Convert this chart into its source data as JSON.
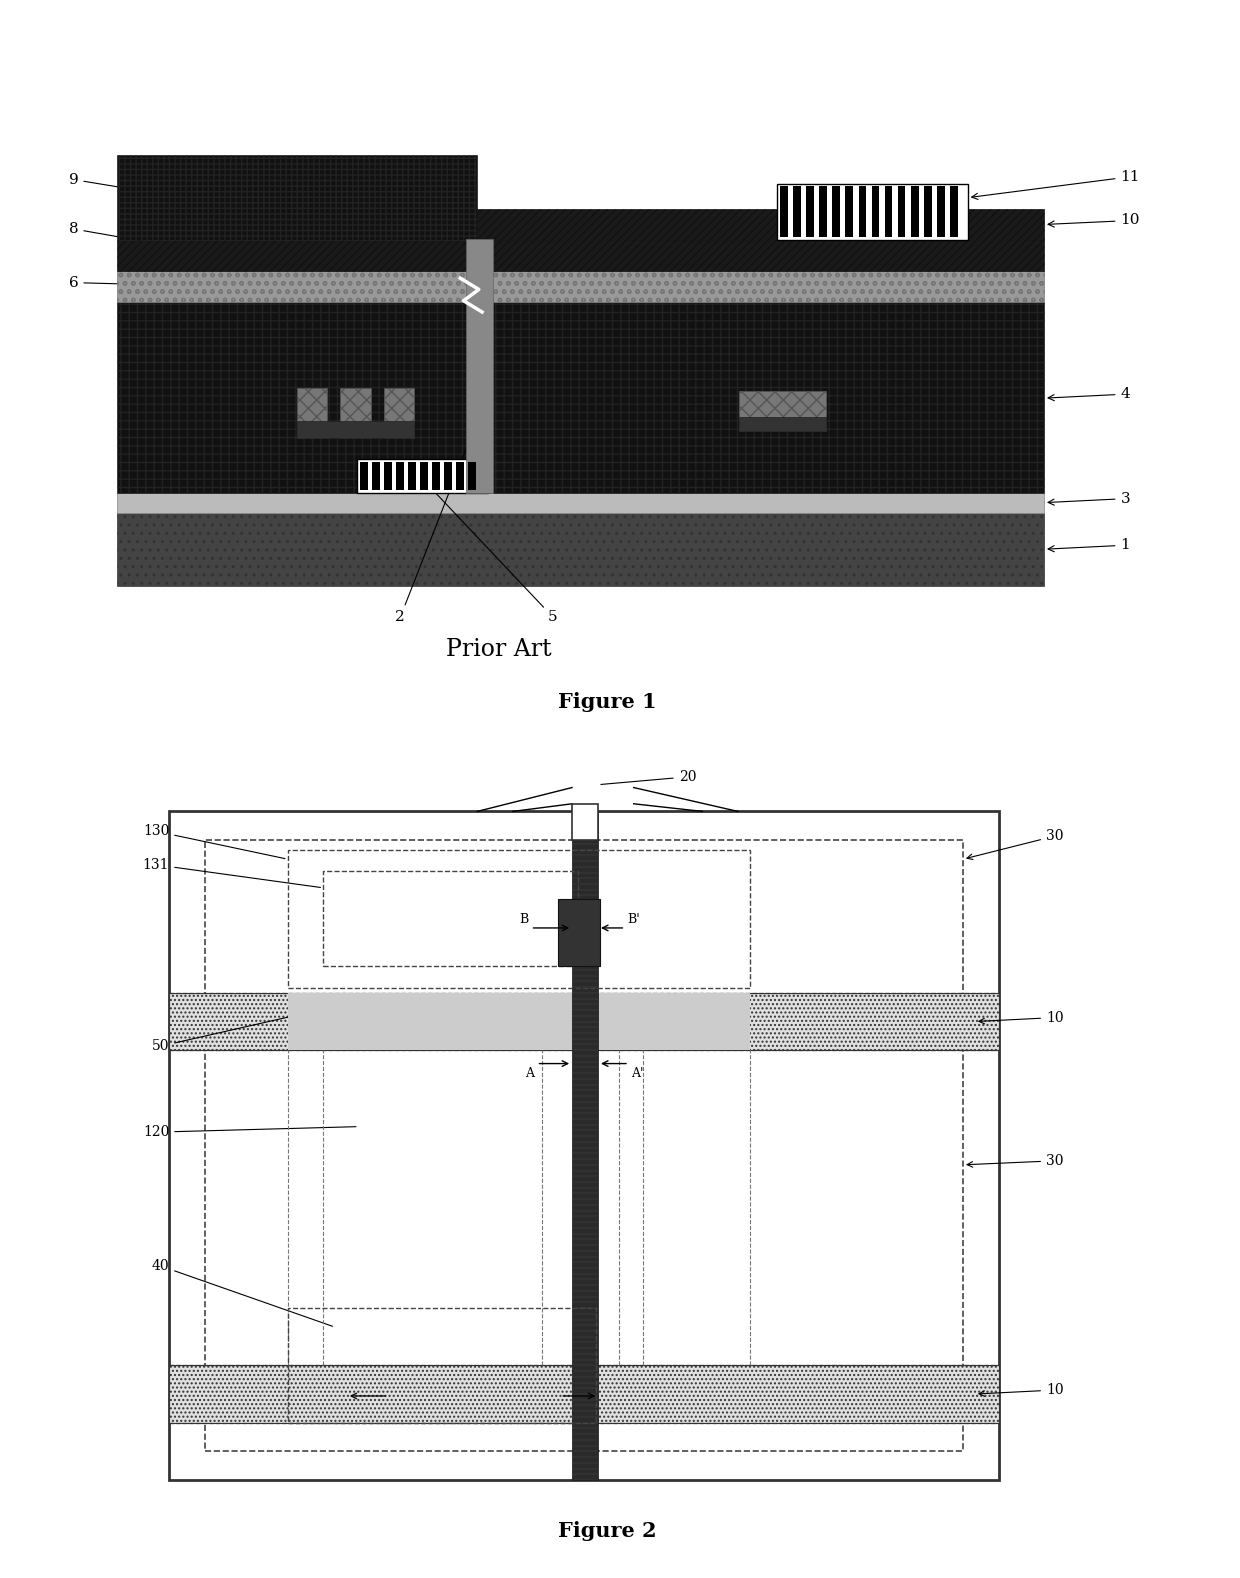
{
  "fig1": {
    "prior_art_text": "Prior Art",
    "figure1_label": "Figure 1",
    "figure2_label": "Figure 2"
  }
}
